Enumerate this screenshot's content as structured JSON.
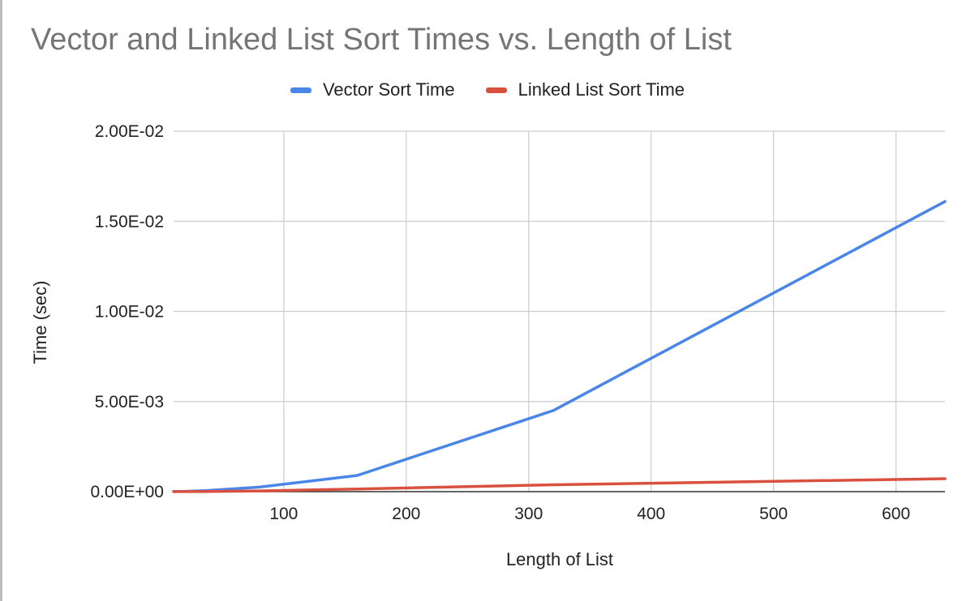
{
  "chart_data": {
    "type": "line",
    "title": "Vector and Linked List Sort Times vs. Length of List",
    "xlabel": "Length of List",
    "ylabel": "Time (sec)",
    "xlim": [
      10,
      640
    ],
    "ylim": [
      0,
      0.02
    ],
    "x_ticks": [
      100,
      200,
      300,
      400,
      500,
      600
    ],
    "x_tick_labels": [
      "100",
      "200",
      "300",
      "400",
      "500",
      "600"
    ],
    "y_ticks": [
      0,
      0.005,
      0.01,
      0.015,
      0.02
    ],
    "y_tick_labels": [
      "0.00E+00",
      "5.00E-03",
      "1.00E-02",
      "1.50E-02",
      "2.00E-02"
    ],
    "grid": true,
    "legend_position": "top",
    "series": [
      {
        "name": "Vector Sort Time",
        "color": "#4a86e8",
        "x": [
          10,
          20,
          40,
          80,
          160,
          320,
          640
        ],
        "y": [
          1e-05,
          2e-05,
          7e-05,
          0.00025,
          0.0009,
          0.0045,
          0.0161
        ]
      },
      {
        "name": "Linked List Sort Time",
        "color": "#d9503f",
        "x": [
          10,
          20,
          40,
          80,
          160,
          320,
          640
        ],
        "y": [
          2e-06,
          4e-06,
          1e-05,
          4e-05,
          0.00015,
          0.00038,
          0.00072
        ]
      }
    ]
  }
}
